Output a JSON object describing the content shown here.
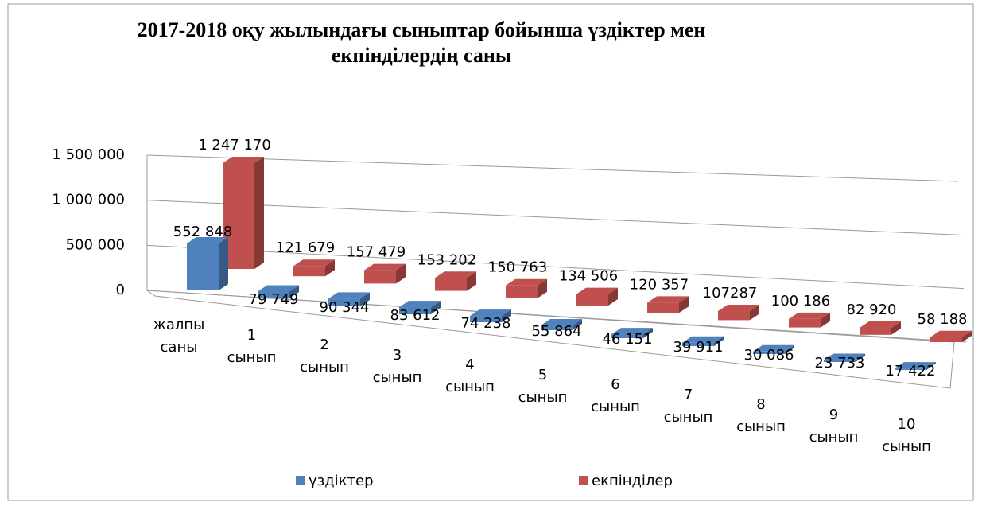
{
  "chart_data": {
    "type": "bar3d",
    "title": "2017-2018 оқу жылындағы сыныптар бойынша үздіктер мен екпінділердің саны",
    "categories": [
      "жалпы саны",
      "1 сынып",
      "2 сынып",
      "3 сынып",
      "4 сынып",
      "5 сынып",
      "6 сынып",
      "7 сынып",
      "8 сынып",
      "9 сынып",
      "10 сынып"
    ],
    "series": [
      {
        "name": "үздіктер",
        "color": "#4f81bd",
        "values": [
          552848,
          79749,
          90344,
          83612,
          74238,
          55864,
          46151,
          39911,
          30086,
          23733,
          17422
        ],
        "value_labels": [
          "552 848",
          "79 749",
          "90 344",
          "83 612",
          "74 238",
          "55 864",
          "46 151",
          "39 911",
          "30 086",
          "23 733",
          "17 422"
        ]
      },
      {
        "name": "екпінділер",
        "color": "#c0504d",
        "values": [
          1247170,
          121679,
          157479,
          153202,
          150763,
          134506,
          120357,
          107287,
          100186,
          82920,
          58188
        ],
        "value_labels": [
          "1 247 170",
          "121 679",
          "157 479",
          "153 202",
          "150 763",
          "134 506",
          "120 357",
          "107287",
          "100 186",
          "82 920",
          "58 188"
        ]
      }
    ],
    "ylim": [
      0,
      1500000
    ],
    "yticks": [
      0,
      {
        "value": 500000,
        "label": "500 000"
      },
      {
        "value": 1000000,
        "label": "1 000 000"
      },
      {
        "value": 1500000,
        "label": "1 500 000"
      }
    ],
    "grid": true,
    "legend": "bottom"
  }
}
